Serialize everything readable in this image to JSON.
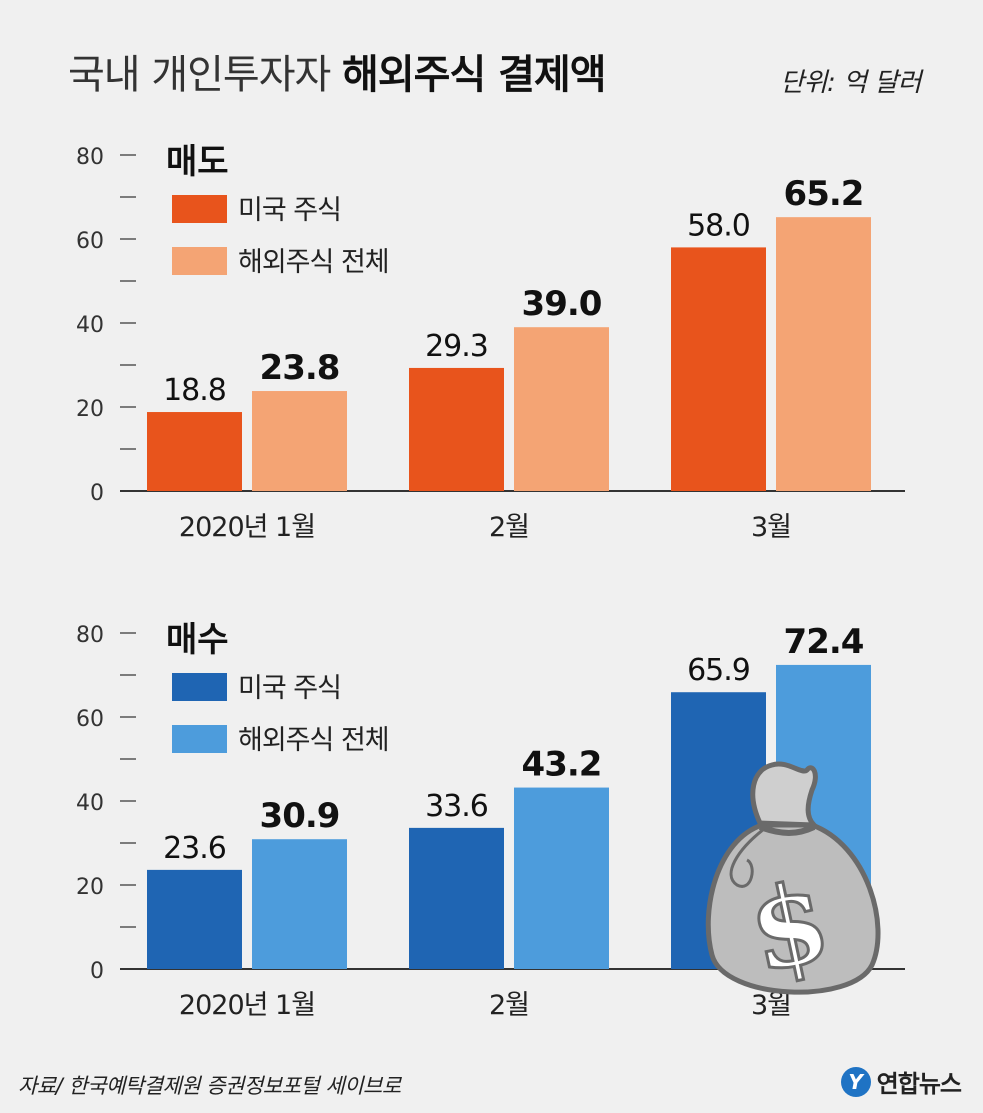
{
  "title": {
    "light": "국내 개인투자자",
    "bold": "해외주식 결제액"
  },
  "unit": "단위: 억 달러",
  "source": "자료/ 한국예탁결제원 증권정보포털 세이브로",
  "logo": {
    "mark": "Y",
    "text": "연합뉴스"
  },
  "icon": "money-bag-dollar-icon",
  "chart_data": [
    {
      "type": "bar",
      "title": "매도",
      "categories": [
        "2020년 1월",
        "2월",
        "3월"
      ],
      "series": [
        {
          "name": "미국 주식",
          "values": [
            18.8,
            29.3,
            58.0
          ],
          "color": "#e8541c"
        },
        {
          "name": "해외주식 전체",
          "values": [
            23.8,
            39.0,
            65.2
          ],
          "color": "#f4a474"
        }
      ],
      "value_labels": [
        [
          "18.8",
          "29.3",
          "58.0"
        ],
        [
          "23.8",
          "39.0",
          "65.2"
        ]
      ],
      "ylim": [
        0,
        80
      ],
      "yticks": [
        0,
        20,
        40,
        60,
        80
      ],
      "legend_position": "top-left"
    },
    {
      "type": "bar",
      "title": "매수",
      "categories": [
        "2020년 1월",
        "2월",
        "3월"
      ],
      "series": [
        {
          "name": "미국 주식",
          "values": [
            23.6,
            33.6,
            65.9
          ],
          "color": "#1f65b3"
        },
        {
          "name": "해외주식 전체",
          "values": [
            30.9,
            43.2,
            72.4
          ],
          "color": "#4d9cdc"
        }
      ],
      "value_labels": [
        [
          "23.6",
          "33.6",
          "65.9"
        ],
        [
          "30.9",
          "43.2",
          "72.4"
        ]
      ],
      "ylim": [
        0,
        80
      ],
      "yticks": [
        0,
        20,
        40,
        60,
        80
      ],
      "legend_position": "top-left"
    }
  ]
}
